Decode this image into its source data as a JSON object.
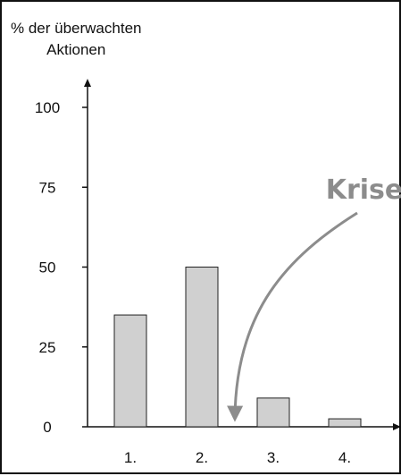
{
  "chart_data": {
    "type": "bar",
    "ylabel": "% der überwachten Aktionen",
    "ylabel_lines": [
      "% der überwachten",
      "Aktionen"
    ],
    "xlabel": "",
    "title": "",
    "categories": [
      "1.",
      "2.",
      "3.",
      "4."
    ],
    "values": [
      35,
      50,
      9,
      2.5
    ],
    "ylim": [
      0,
      100
    ],
    "yticks": [
      0,
      25,
      50,
      75,
      100
    ],
    "grid": false,
    "bar_color": "#d0d0d0",
    "annotation": {
      "text": "Krise",
      "color": "#8c8c8c",
      "points_to": "between categories 2. and 3."
    }
  }
}
